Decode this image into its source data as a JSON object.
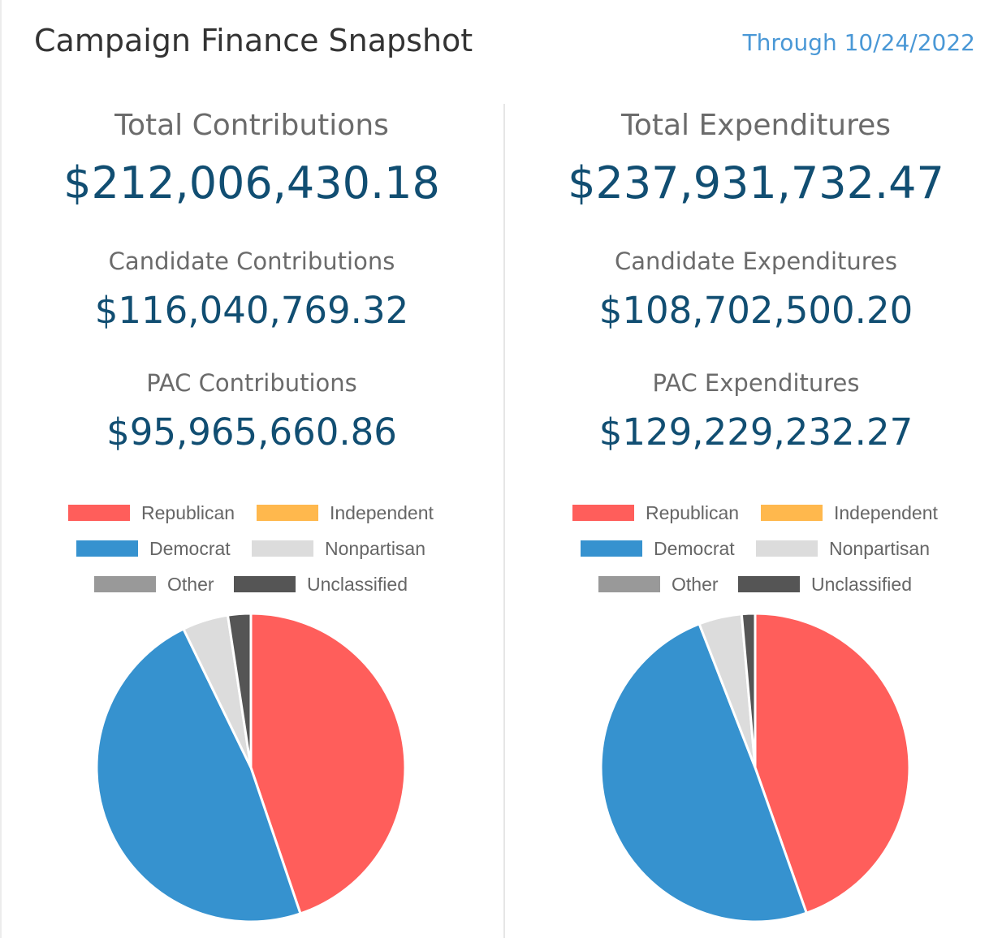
{
  "header": {
    "title": "Campaign Finance Snapshot",
    "date": "Through 10/24/2022"
  },
  "contributions": {
    "total_label": "Total Contributions",
    "total_value": "$212,006,430.18",
    "candidate_label": "Candidate Contributions",
    "candidate_value": "$116,040,769.32",
    "pac_label": "PAC Contributions",
    "pac_value": "$95,965,660.86"
  },
  "expenditures": {
    "total_label": "Total Expenditures",
    "total_value": "$237,931,732.47",
    "candidate_label": "Candidate Expenditures",
    "candidate_value": "$108,702,500.20",
    "pac_label": "PAC Expenditures",
    "pac_value": "$129,229,232.27"
  },
  "legend": [
    {
      "label": "Republican",
      "color": "#ff5e5b"
    },
    {
      "label": "Independent",
      "color": "#ffb84d"
    },
    {
      "label": "Democrat",
      "color": "#3692cf"
    },
    {
      "label": "Nonpartisan",
      "color": "#dcdcdc"
    },
    {
      "label": "Other",
      "color": "#999999"
    },
    {
      "label": "Unclassified",
      "color": "#555555"
    }
  ],
  "chart_data": [
    {
      "type": "pie",
      "categories": [
        "Republican",
        "Independent",
        "Democrat",
        "Nonpartisan",
        "Other",
        "Unclassified"
      ],
      "values": [
        44.8,
        0,
        48.0,
        4.8,
        0,
        2.4
      ],
      "colors": [
        "#ff5e5b",
        "#ffb84d",
        "#3692cf",
        "#dcdcdc",
        "#999999",
        "#555555"
      ],
      "unit": "percent of total",
      "legend": "top"
    },
    {
      "type": "pie",
      "categories": [
        "Republican",
        "Independent",
        "Democrat",
        "Nonpartisan",
        "Other",
        "Unclassified"
      ],
      "values": [
        44.6,
        0,
        49.5,
        4.5,
        0,
        1.4
      ],
      "colors": [
        "#ff5e5b",
        "#ffb84d",
        "#3692cf",
        "#dcdcdc",
        "#999999",
        "#555555"
      ],
      "unit": "percent of total",
      "legend": "top"
    }
  ]
}
